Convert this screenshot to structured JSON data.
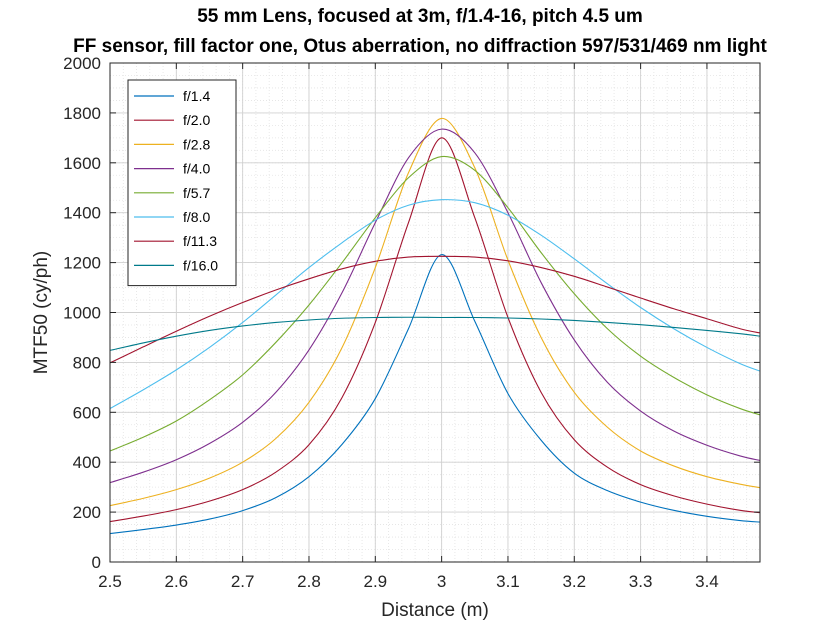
{
  "chart_data": {
    "type": "line",
    "title": "55 mm Lens, focused at 3m, f/1.4-16, pitch 4.5 um",
    "subtitle": "FF sensor, fill factor one, Otus aberration, no diffraction 597/531/469 nm light",
    "xlabel": "Distance (m)",
    "ylabel": "MTF50 (cy/ph)",
    "xlim": [
      2.5,
      3.48
    ],
    "ylim": [
      0,
      2000
    ],
    "xticks": [
      2.5,
      2.6,
      2.7,
      2.8,
      2.9,
      3,
      3.1,
      3.2,
      3.3,
      3.4
    ],
    "xtick_labels": [
      "2.5",
      "2.6",
      "2.7",
      "2.8",
      "2.9",
      "3",
      "3.1",
      "3.2",
      "3.3",
      "3.4"
    ],
    "yticks": [
      0,
      200,
      400,
      600,
      800,
      1000,
      1200,
      1400,
      1600,
      1800,
      2000
    ],
    "ytick_labels": [
      "0",
      "200",
      "400",
      "600",
      "800",
      "1000",
      "1200",
      "1400",
      "1600",
      "1800",
      "2000"
    ],
    "grid": "major and minor",
    "legend_position": "top-left",
    "x": [
      2.5,
      2.55,
      2.6,
      2.65,
      2.7,
      2.75,
      2.8,
      2.85,
      2.9,
      2.95,
      3.0,
      3.05,
      3.1,
      3.15,
      3.2,
      3.25,
      3.3,
      3.35,
      3.4,
      3.45,
      3.48
    ],
    "series": [
      {
        "name": "f/1.4",
        "color": "#0072BD",
        "values": [
          114,
          130,
          148,
          172,
          206,
          258,
          342,
          472,
          655,
          935,
          1232,
          965,
          675,
          488,
          356,
          286,
          240,
          207,
          183,
          166,
          160
        ]
      },
      {
        "name": "f/2.0",
        "color": "#A2142F",
        "values": [
          162,
          184,
          210,
          244,
          290,
          360,
          470,
          660,
          960,
          1360,
          1700,
          1380,
          980,
          680,
          490,
          380,
          310,
          265,
          232,
          207,
          198
        ]
      },
      {
        "name": "f/2.8",
        "color": "#EDB120",
        "values": [
          226,
          255,
          290,
          336,
          400,
          495,
          640,
          860,
          1180,
          1560,
          1778,
          1580,
          1210,
          900,
          680,
          540,
          445,
          385,
          342,
          312,
          298
        ]
      },
      {
        "name": "f/4.0",
        "color": "#7E2F8E",
        "values": [
          318,
          360,
          410,
          475,
          560,
          680,
          850,
          1080,
          1360,
          1620,
          1735,
          1640,
          1400,
          1120,
          890,
          720,
          605,
          525,
          468,
          425,
          407
        ]
      },
      {
        "name": "f/5.7",
        "color": "#77AC30",
        "values": [
          445,
          500,
          565,
          650,
          750,
          880,
          1030,
          1200,
          1380,
          1540,
          1625,
          1570,
          1420,
          1240,
          1075,
          935,
          825,
          740,
          670,
          615,
          590
        ]
      },
      {
        "name": "f/8.0",
        "color": "#4DBEEE",
        "values": [
          615,
          690,
          770,
          860,
          960,
          1070,
          1180,
          1280,
          1370,
          1430,
          1452,
          1440,
          1390,
          1310,
          1215,
          1115,
          1020,
          935,
          860,
          795,
          765
        ]
      },
      {
        "name": "f/11.3",
        "color": "#A2142F",
        "values": [
          798,
          862,
          925,
          985,
          1040,
          1090,
          1135,
          1175,
          1205,
          1222,
          1225,
          1222,
          1207,
          1180,
          1145,
          1102,
          1058,
          1015,
          975,
          935,
          918
        ]
      },
      {
        "name": "f/16.0",
        "color": "#007A8A",
        "values": [
          848,
          878,
          905,
          928,
          946,
          960,
          970,
          977,
          980,
          981,
          980,
          980,
          978,
          974,
          968,
          960,
          951,
          940,
          928,
          915,
          905
        ]
      }
    ]
  }
}
